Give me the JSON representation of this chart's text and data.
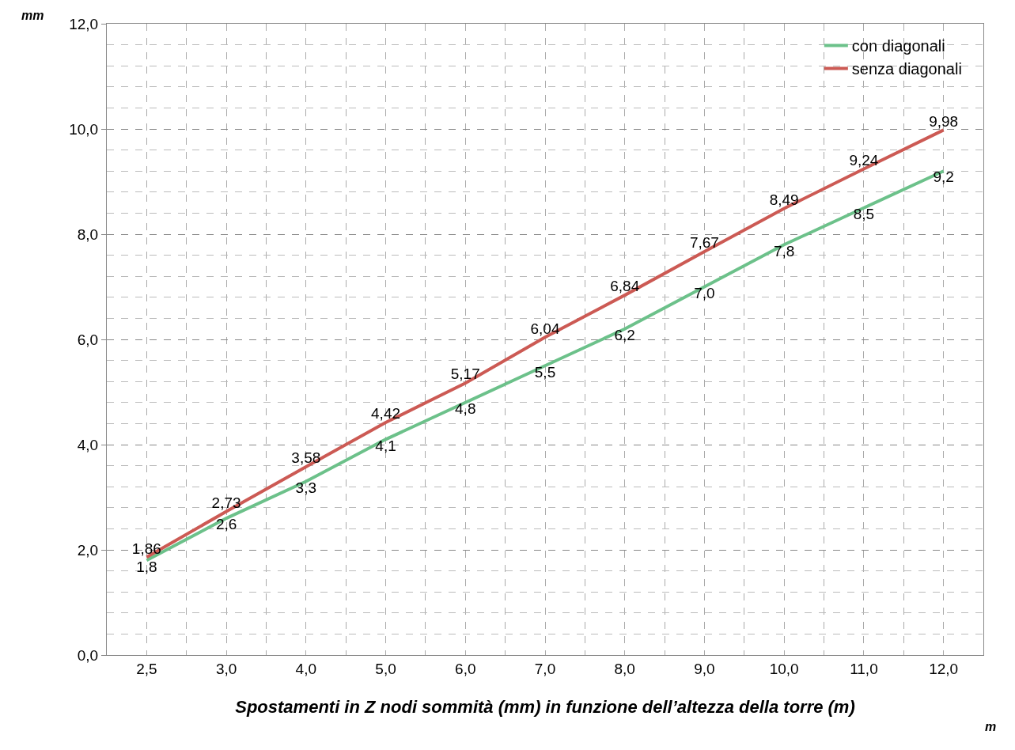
{
  "chart_data": {
    "type": "line",
    "xlabel": "Spostamenti in Z nodi sommità (mm) in funzione dell’altezza della torre (m)",
    "ylabel": "mm",
    "annotations": [
      "m"
    ],
    "categories": [
      "2,5",
      "3,0",
      "4,0",
      "5,0",
      "6,0",
      "7,0",
      "8,0",
      "9,0",
      "10,0",
      "11,0",
      "12,0"
    ],
    "series": [
      {
        "name": "con diagonali",
        "color": "#6cc18a",
        "values": [
          1.8,
          2.6,
          3.3,
          4.1,
          4.8,
          5.5,
          6.2,
          7.0,
          7.8,
          8.5,
          9.2
        ],
        "value_labels": [
          "1,8",
          "2,6",
          "3,3",
          "4,1",
          "4,8",
          "5,5",
          "6,2",
          "7,0",
          "7,8",
          "8,5",
          "9,2"
        ]
      },
      {
        "name": "senza diagonali",
        "color": "#cc5a54",
        "values": [
          1.86,
          2.73,
          3.58,
          4.42,
          5.17,
          6.04,
          6.84,
          7.67,
          8.49,
          9.24,
          9.98
        ],
        "value_labels": [
          "1,86",
          "2,73",
          "3,58",
          "4,42",
          "5,17",
          "6,04",
          "6,84",
          "7,67",
          "8,49",
          "9,24",
          "9,98"
        ]
      }
    ],
    "ylim": [
      0,
      12
    ],
    "yticks": [
      {
        "value": 0,
        "label": "0,0"
      },
      {
        "value": 2,
        "label": "2,0"
      },
      {
        "value": 4,
        "label": "4,0"
      },
      {
        "value": 6,
        "label": "6,0"
      },
      {
        "value": 8,
        "label": "8,0"
      },
      {
        "value": 10,
        "label": "10,0"
      },
      {
        "value": 12,
        "label": "12,0"
      }
    ],
    "grid": true,
    "legend": "top right",
    "line_style": "solid",
    "marker": "none"
  }
}
